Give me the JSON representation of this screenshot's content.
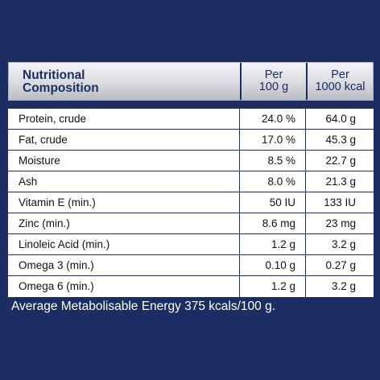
{
  "table": {
    "header": {
      "col1_line1": "Nutritional",
      "col1_line2": "Composition",
      "col2_line1": "Per",
      "col2_line2": "100 g",
      "col3_line1": "Per",
      "col3_line2": "1000 kcal"
    },
    "rows": [
      {
        "label": "Protein, crude",
        "per100g": "24.0 %",
        "per1000kcal": "64.0 g"
      },
      {
        "label": "Fat, crude",
        "per100g": "17.0 %",
        "per1000kcal": "45.3 g"
      },
      {
        "label": "Moisture",
        "per100g": "8.5 %",
        "per1000kcal": "22.7 g"
      },
      {
        "label": "Ash",
        "per100g": "8.0 %",
        "per1000kcal": "21.3 g"
      },
      {
        "label": "Vitamin E (min.)",
        "per100g": "50 IU",
        "per1000kcal": "133 IU"
      },
      {
        "label": "Zinc (min.)",
        "per100g": "8.6 mg",
        "per1000kcal": "23 mg"
      },
      {
        "label": "Linoleic Acid (min.)",
        "per100g": "1.2 g",
        "per1000kcal": "3.2 g"
      },
      {
        "label": "Omega 3 (min.)",
        "per100g": "0.10 g",
        "per1000kcal": "0.27 g"
      },
      {
        "label": "Omega 6 (min.)",
        "per100g": "1.2 g",
        "per1000kcal": "3.2 g"
      }
    ]
  },
  "footnote": "Average Metabolisable Energy 375 kcals/100 g.",
  "colors": {
    "background": "#1b2d63",
    "header_gray": "#d9dbe0"
  }
}
